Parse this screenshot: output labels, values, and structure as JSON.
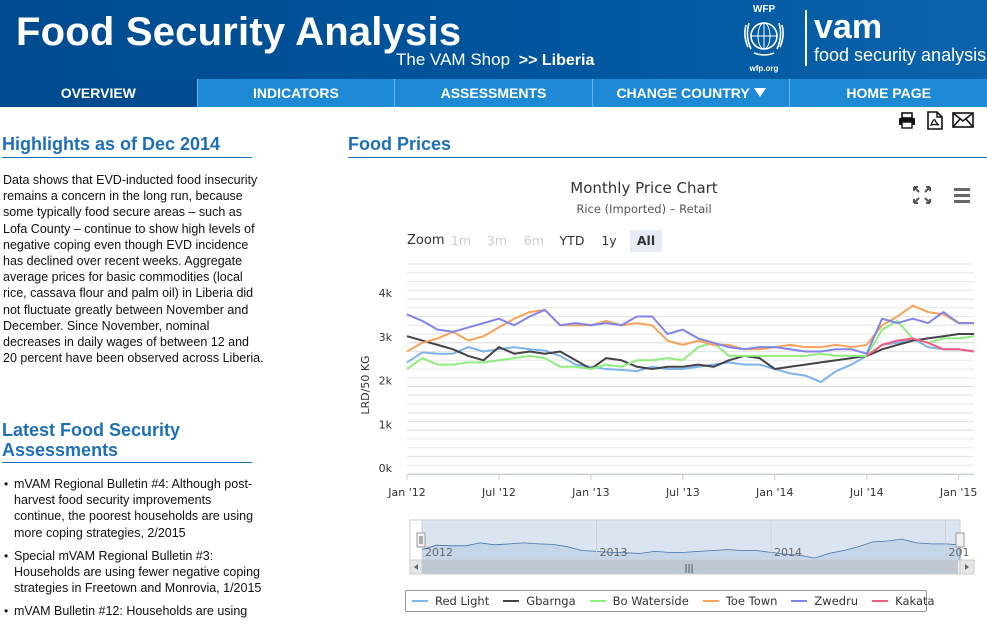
{
  "header": {
    "title": "Food Security Analysis",
    "subtitle_prefix": "The VAM Shop",
    "subtitle_country": ">> Liberia",
    "wfp_top": "WFP",
    "wfp_bottom": "wfp.org",
    "vam_name": "vam",
    "vam_tagline": "food security analysis"
  },
  "nav": {
    "items": [
      {
        "label": "OVERVIEW"
      },
      {
        "label": "INDICATORS"
      },
      {
        "label": "ASSESSMENTS"
      },
      {
        "label": "CHANGE COUNTRY"
      },
      {
        "label": "HOME PAGE"
      }
    ],
    "active_index": 0
  },
  "share": [
    "print-icon",
    "pdf-icon",
    "email-icon"
  ],
  "highlights": {
    "heading": "Highlights as of Dec 2014",
    "text": "Data shows that EVD-inducted food insecurity remains a concern in the long run, because some typically food secure areas – such as Lofa County – continue to show high levels of negative coping even though EVD incidence has declined over recent weeks. Aggregate average prices for basic commodities (local rice, cassava flour and palm oil) in Liberia did not fluctuate greatly between November and December. Since November, nominal decreases in daily wages of between 12 and 20 percent have been observed across Liberia."
  },
  "assessments": {
    "heading": "Latest Food Security Assessments",
    "items": [
      "mVAM Regional Bulletin #4: Although post-harvest food security improvements continue, the poorest households are using more coping strategies, 2/2015",
      "Special mVAM Regional Bulletin #3: Households are using fewer negative coping strategies in Freetown and Monrovia, 1/2015",
      "mVAM Bulletin #12: Households are using"
    ]
  },
  "food_prices": {
    "heading": "Food Prices",
    "zoom_label": "Zoom",
    "zoom_buttons": [
      {
        "label": "1m",
        "state": "disabled"
      },
      {
        "label": "3m",
        "state": "disabled"
      },
      {
        "label": "6m",
        "state": "disabled"
      },
      {
        "label": "YTD",
        "state": "normal"
      },
      {
        "label": "1y",
        "state": "normal"
      },
      {
        "label": "All",
        "state": "selected"
      }
    ],
    "navigator_labels": [
      "2012",
      "2013",
      "2014",
      "201"
    ]
  },
  "chart_data": {
    "type": "line",
    "title": "Monthly Price Chart",
    "subtitle": "Rice (Imported) – Retail",
    "ylabel": "LRD/50 KG",
    "xlabel": "",
    "ylim": [
      0,
      4800
    ],
    "y_ticks": [
      0,
      1000,
      2000,
      3000,
      4000
    ],
    "y_tick_labels": [
      "0k",
      "1k",
      "2k",
      "3k",
      "4k"
    ],
    "x_range": [
      "2012-01",
      "2015-02"
    ],
    "x_ticks": [
      "2012-01",
      "2012-07",
      "2013-01",
      "2013-07",
      "2014-01",
      "2014-07",
      "2015-01"
    ],
    "x_tick_labels": [
      "Jan '12",
      "Jul '12",
      "Jan '13",
      "Jul '13",
      "Jan '14",
      "Jul '14",
      "Jan '15"
    ],
    "grid": true,
    "legend_position": "bottom",
    "series": [
      {
        "name": "Red Light",
        "color": "#7cb5ec",
        "points": [
          [
            "2012-01",
            2550
          ],
          [
            "2012-02",
            2780
          ],
          [
            "2012-03",
            2750
          ],
          [
            "2012-04",
            2750
          ],
          [
            "2012-05",
            2900
          ],
          [
            "2012-06",
            2800
          ],
          [
            "2012-07",
            2850
          ],
          [
            "2012-08",
            2900
          ],
          [
            "2012-09",
            2850
          ],
          [
            "2012-10",
            2820
          ],
          [
            "2012-11",
            2700
          ],
          [
            "2012-12",
            2500
          ],
          [
            "2013-01",
            2450
          ],
          [
            "2013-02",
            2400
          ],
          [
            "2013-03",
            2380
          ],
          [
            "2013-04",
            2350
          ],
          [
            "2013-05",
            2450
          ],
          [
            "2013-06",
            2400
          ],
          [
            "2013-07",
            2400
          ],
          [
            "2013-08",
            2450
          ],
          [
            "2013-09",
            2500
          ],
          [
            "2013-10",
            2550
          ],
          [
            "2013-11",
            2500
          ],
          [
            "2013-12",
            2500
          ],
          [
            "2014-01",
            2400
          ],
          [
            "2014-02",
            2300
          ],
          [
            "2014-03",
            2250
          ],
          [
            "2014-04",
            2100
          ],
          [
            "2014-05",
            2350
          ],
          [
            "2014-06",
            2500
          ],
          [
            "2014-07",
            2700
          ],
          [
            "2014-08",
            2950
          ],
          [
            "2014-09",
            3000
          ],
          [
            "2014-10",
            3100
          ],
          [
            "2014-11",
            2900
          ],
          [
            "2014-12",
            2850
          ],
          [
            "2015-01",
            2850
          ],
          [
            "2015-02",
            2800
          ]
        ]
      },
      {
        "name": "Gbarnga",
        "color": "#434348",
        "points": [
          [
            "2012-01",
            3150
          ],
          [
            "2012-02",
            3050
          ],
          [
            "2012-03",
            2950
          ],
          [
            "2012-04",
            2850
          ],
          [
            "2012-05",
            2700
          ],
          [
            "2012-06",
            2600
          ],
          [
            "2012-07",
            2900
          ],
          [
            "2012-08",
            2750
          ],
          [
            "2012-09",
            2800
          ],
          [
            "2012-10",
            2750
          ],
          [
            "2012-11",
            2800
          ],
          [
            "2012-12",
            2600
          ],
          [
            "2013-01",
            2400
          ],
          [
            "2013-02",
            2650
          ],
          [
            "2013-03",
            2600
          ],
          [
            "2013-04",
            2450
          ],
          [
            "2013-05",
            2400
          ],
          [
            "2013-06",
            2450
          ],
          [
            "2013-07",
            2450
          ],
          [
            "2013-08",
            2500
          ],
          [
            "2013-09",
            2450
          ],
          [
            "2013-10",
            2600
          ],
          [
            "2013-11",
            2700
          ],
          [
            "2013-12",
            2650
          ],
          [
            "2014-01",
            2400
          ],
          [
            "2014-02",
            2450
          ],
          [
            "2014-03",
            2500
          ],
          [
            "2014-04",
            2550
          ],
          [
            "2014-05",
            2600
          ],
          [
            "2014-06",
            2650
          ],
          [
            "2014-07",
            2700
          ],
          [
            "2014-08",
            2850
          ],
          [
            "2014-09",
            2950
          ],
          [
            "2014-10",
            3050
          ],
          [
            "2014-11",
            3100
          ],
          [
            "2014-12",
            3150
          ],
          [
            "2015-01",
            3200
          ],
          [
            "2015-02",
            3200
          ]
        ]
      },
      {
        "name": "Bo Waterside",
        "color": "#90ed7d",
        "points": [
          [
            "2012-01",
            2400
          ],
          [
            "2012-02",
            2650
          ],
          [
            "2012-03",
            2500
          ],
          [
            "2012-04",
            2500
          ],
          [
            "2012-05",
            2550
          ],
          [
            "2012-06",
            2550
          ],
          [
            "2012-07",
            2600
          ],
          [
            "2012-08",
            2650
          ],
          [
            "2012-09",
            2700
          ],
          [
            "2012-10",
            2650
          ],
          [
            "2012-11",
            2450
          ],
          [
            "2012-12",
            2450
          ],
          [
            "2013-01",
            2400
          ],
          [
            "2013-02",
            2500
          ],
          [
            "2013-03",
            2450
          ],
          [
            "2013-04",
            2600
          ],
          [
            "2013-05",
            2600
          ],
          [
            "2013-06",
            2650
          ],
          [
            "2013-07",
            2600
          ],
          [
            "2013-08",
            2900
          ],
          [
            "2013-09",
            3000
          ],
          [
            "2013-10",
            2700
          ],
          [
            "2013-11",
            2700
          ],
          [
            "2013-12",
            2700
          ],
          [
            "2014-01",
            2700
          ],
          [
            "2014-02",
            2700
          ],
          [
            "2014-03",
            2700
          ],
          [
            "2014-04",
            2750
          ],
          [
            "2014-05",
            2700
          ],
          [
            "2014-06",
            2700
          ],
          [
            "2014-07",
            2700
          ],
          [
            "2014-08",
            3300
          ],
          [
            "2014-09",
            3500
          ],
          [
            "2014-10",
            3100
          ],
          [
            "2014-11",
            3000
          ],
          [
            "2014-12",
            3100
          ],
          [
            "2015-01",
            3100
          ],
          [
            "2015-02",
            3150
          ]
        ]
      },
      {
        "name": "Toe Town",
        "color": "#f7a35c",
        "points": [
          [
            "2012-01",
            2800
          ],
          [
            "2012-02",
            3000
          ],
          [
            "2012-03",
            3100
          ],
          [
            "2012-04",
            3250
          ],
          [
            "2012-05",
            3050
          ],
          [
            "2012-06",
            3150
          ],
          [
            "2012-07",
            3350
          ],
          [
            "2012-08",
            3550
          ],
          [
            "2012-09",
            3700
          ],
          [
            "2012-10",
            3750
          ],
          [
            "2012-11",
            3400
          ],
          [
            "2012-12",
            3400
          ],
          [
            "2013-01",
            3400
          ],
          [
            "2013-02",
            3500
          ],
          [
            "2013-03",
            3400
          ],
          [
            "2013-04",
            3450
          ],
          [
            "2013-05",
            3400
          ],
          [
            "2013-06",
            3050
          ],
          [
            "2013-07",
            2950
          ],
          [
            "2013-08",
            3050
          ],
          [
            "2013-09",
            2950
          ],
          [
            "2013-10",
            2950
          ],
          [
            "2013-11",
            2850
          ],
          [
            "2013-12",
            2850
          ],
          [
            "2014-01",
            2900
          ],
          [
            "2014-02",
            2950
          ],
          [
            "2014-03",
            2900
          ],
          [
            "2014-04",
            2900
          ],
          [
            "2014-05",
            2950
          ],
          [
            "2014-06",
            2900
          ],
          [
            "2014-07",
            2950
          ],
          [
            "2014-08",
            3400
          ],
          [
            "2014-09",
            3600
          ],
          [
            "2014-10",
            3850
          ],
          [
            "2014-11",
            3700
          ],
          [
            "2014-12",
            3650
          ],
          [
            "2015-01",
            3450
          ],
          [
            "2015-02",
            3450
          ]
        ]
      },
      {
        "name": "Zwedru",
        "color": "#8085e9",
        "points": [
          [
            "2012-01",
            3650
          ],
          [
            "2012-02",
            3500
          ],
          [
            "2012-03",
            3300
          ],
          [
            "2012-04",
            3250
          ],
          [
            "2012-05",
            3350
          ],
          [
            "2012-06",
            3450
          ],
          [
            "2012-07",
            3550
          ],
          [
            "2012-08",
            3400
          ],
          [
            "2012-09",
            3600
          ],
          [
            "2012-10",
            3750
          ],
          [
            "2012-11",
            3400
          ],
          [
            "2012-12",
            3450
          ],
          [
            "2013-01",
            3400
          ],
          [
            "2013-02",
            3450
          ],
          [
            "2013-03",
            3400
          ],
          [
            "2013-04",
            3600
          ],
          [
            "2013-05",
            3600
          ],
          [
            "2013-06",
            3200
          ],
          [
            "2013-07",
            3300
          ],
          [
            "2013-08",
            3100
          ],
          [
            "2013-09",
            3000
          ],
          [
            "2013-10",
            2900
          ],
          [
            "2013-11",
            2850
          ],
          [
            "2013-12",
            2900
          ],
          [
            "2014-01",
            2900
          ],
          [
            "2014-02",
            2850
          ],
          [
            "2014-03",
            2800
          ],
          [
            "2014-04",
            2800
          ],
          [
            "2014-05",
            2850
          ],
          [
            "2014-06",
            2850
          ],
          [
            "2014-07",
            2750
          ],
          [
            "2014-08",
            3550
          ],
          [
            "2014-09",
            3450
          ],
          [
            "2014-10",
            3550
          ],
          [
            "2014-11",
            3450
          ],
          [
            "2014-12",
            3700
          ],
          [
            "2015-01",
            3450
          ],
          [
            "2015-02",
            3450
          ]
        ]
      },
      {
        "name": "Kakata",
        "color": "#f15c80",
        "points": [
          [
            "2014-07",
            2700
          ],
          [
            "2014-08",
            2950
          ],
          [
            "2014-09",
            3050
          ],
          [
            "2014-10",
            3100
          ],
          [
            "2014-11",
            3000
          ],
          [
            "2014-12",
            2850
          ],
          [
            "2015-01",
            2850
          ],
          [
            "2015-02",
            2800
          ]
        ]
      }
    ]
  }
}
